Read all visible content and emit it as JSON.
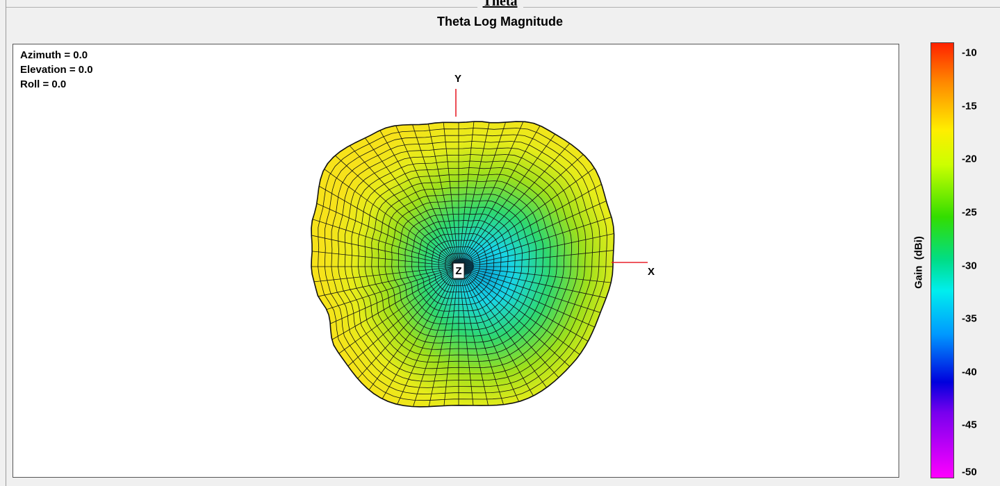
{
  "page_title": "Theta",
  "chart_data": {
    "type": "3d-surface",
    "title": "Theta Log Magnitude",
    "orientation": {
      "azimuth": "Azimuth = 0.0",
      "elevation": "Elevation = 0.0",
      "roll": "Roll = 0.0"
    },
    "axes": [
      "X",
      "Y",
      "Z"
    ],
    "colorbar": {
      "label": "Gain  (dBi)",
      "ticks": [
        -10,
        -15,
        -20,
        -25,
        -30,
        -35,
        -40,
        -45,
        -50
      ],
      "range": [
        -50,
        -9
      ],
      "colormap": "jet-like (red high, magenta low)"
    },
    "grid": true
  },
  "colors": {
    "surface_high": "#f5e61a",
    "surface_mid": "#5ad84a",
    "surface_low": "#19d6e6",
    "axis_line": "#e8202a"
  }
}
